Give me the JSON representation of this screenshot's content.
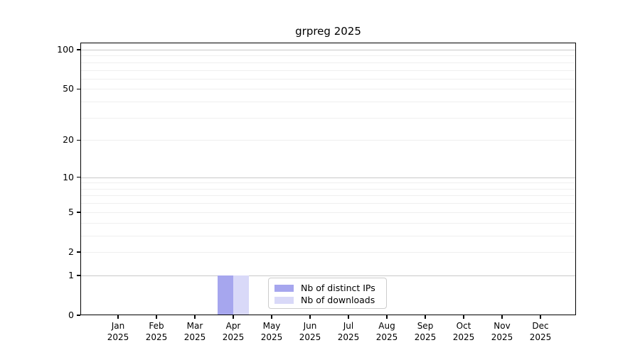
{
  "title": "grpreg 2025",
  "chart_data": {
    "type": "bar",
    "title": "grpreg 2025",
    "x_categories": [
      "Jan",
      "Feb",
      "Mar",
      "Apr",
      "May",
      "Jun",
      "Jul",
      "Aug",
      "Sep",
      "Oct",
      "Nov",
      "Dec"
    ],
    "x_year_label": "2025",
    "y_ticks": [
      0,
      1,
      2,
      5,
      10,
      20,
      50,
      100
    ],
    "y_scale": "log10(1+y)",
    "ylim": [
      0,
      113
    ],
    "grid": "on",
    "major_gridlines": [
      1,
      10,
      100
    ],
    "minor_gridlines": [
      2,
      3,
      4,
      5,
      6,
      7,
      8,
      9,
      20,
      30,
      40,
      50,
      60,
      70,
      80,
      90
    ],
    "series": [
      {
        "name": "Nb of distinct IPs",
        "color": "#a6a6ee",
        "values": [
          0,
          0,
          0,
          1,
          0,
          0,
          0,
          0,
          0,
          0,
          0,
          0
        ]
      },
      {
        "name": "Nb of downloads",
        "color": "#d9d9f8",
        "values": [
          0,
          0,
          0,
          1,
          0,
          0,
          0,
          0,
          0,
          0,
          0,
          0
        ]
      }
    ],
    "legend_position": "inside bottom-center"
  },
  "colors": {
    "axis": "#000000",
    "major_grid": "#c9c9c9",
    "minor_grid": "#efefef",
    "legend_border": "#cccccc",
    "background": "#ffffff"
  }
}
